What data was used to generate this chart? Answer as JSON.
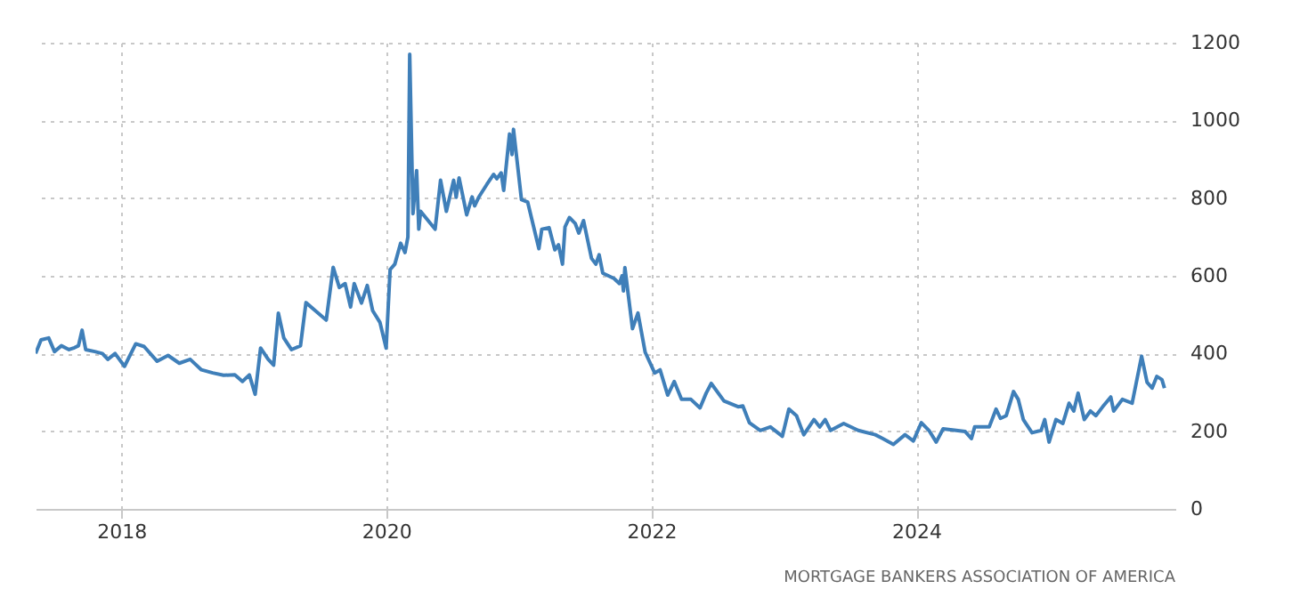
{
  "chart_data": {
    "type": "line",
    "annotations": [
      "MORTGAGE BANKERS ASSOCIATION OF AMERICA"
    ],
    "x": [
      "2017-05-10",
      "2017-05-25",
      "2017-06-15",
      "2017-07-01",
      "2017-07-20",
      "2017-08-10",
      "2017-08-25",
      "2017-09-05",
      "2017-09-15",
      "2017-09-25",
      "2017-10-20",
      "2017-11-10",
      "2017-11-25",
      "2017-12-15",
      "2018-01-10",
      "2018-02-10",
      "2018-03-05",
      "2018-04-10",
      "2018-05-10",
      "2018-06-10",
      "2018-07-10",
      "2018-08-10",
      "2018-09-10",
      "2018-10-10",
      "2018-11-10",
      "2018-12-01",
      "2018-12-20",
      "2019-01-05",
      "2019-01-20",
      "2019-02-10",
      "2019-02-25",
      "2019-03-10",
      "2019-03-25",
      "2019-04-15",
      "2019-05-10",
      "2019-05-25",
      "2019-06-20",
      "2019-07-20",
      "2019-08-08",
      "2019-08-25",
      "2019-09-10",
      "2019-09-25",
      "2019-10-05",
      "2019-10-25",
      "2019-11-10",
      "2019-11-25",
      "2019-12-15",
      "2020-01-01",
      "2020-01-12",
      "2020-01-25",
      "2020-02-10",
      "2020-02-22",
      "2020-03-01",
      "2020-03-06",
      "2020-03-15",
      "2020-03-25",
      "2020-03-31",
      "2020-04-05",
      "2020-05-15",
      "2020-05-30",
      "2020-06-15",
      "2020-07-05",
      "2020-07-12",
      "2020-07-20",
      "2020-08-10",
      "2020-08-25",
      "2020-09-01",
      "2020-09-12",
      "2020-10-05",
      "2020-10-23",
      "2020-11-01",
      "2020-11-13",
      "2020-11-20",
      "2020-12-06",
      "2020-12-13",
      "2020-12-17",
      "2021-01-08",
      "2021-01-25",
      "2021-02-25",
      "2021-03-05",
      "2021-03-25",
      "2021-04-10",
      "2021-04-20",
      "2021-05-01",
      "2021-05-08",
      "2021-05-20",
      "2021-06-05",
      "2021-06-15",
      "2021-06-28",
      "2021-07-20",
      "2021-08-01",
      "2021-08-10",
      "2021-08-20",
      "2021-09-20",
      "2021-10-05",
      "2021-10-12",
      "2021-10-16",
      "2021-10-20",
      "2021-11-10",
      "2021-11-25",
      "2021-12-15",
      "2022-01-10",
      "2022-01-25",
      "2022-02-15",
      "2022-03-05",
      "2022-03-25",
      "2022-04-20",
      "2022-05-15",
      "2022-06-01",
      "2022-06-15",
      "2022-07-20",
      "2022-08-28",
      "2022-09-10",
      "2022-09-28",
      "2022-10-28",
      "2022-11-25",
      "2022-12-28",
      "2023-01-15",
      "2023-02-05",
      "2023-02-25",
      "2023-03-25",
      "2023-04-10",
      "2023-04-25",
      "2023-05-10",
      "2023-06-15",
      "2023-07-25",
      "2023-09-10",
      "2023-10-01",
      "2023-10-30",
      "2023-12-01",
      "2023-12-24",
      "2024-01-15",
      "2024-02-05",
      "2024-02-25",
      "2024-03-15",
      "2024-04-20",
      "2024-05-15",
      "2024-06-01",
      "2024-06-10",
      "2024-07-20",
      "2024-08-08",
      "2024-08-20",
      "2024-09-05",
      "2024-09-25",
      "2024-10-08",
      "2024-10-22",
      "2024-11-15",
      "2024-12-10",
      "2024-12-20",
      "2025-01-01",
      "2025-01-20",
      "2025-02-08",
      "2025-02-25",
      "2025-03-10",
      "2025-03-22",
      "2025-04-08",
      "2025-04-25",
      "2025-05-10",
      "2025-05-28",
      "2025-06-20",
      "2025-06-28",
      "2025-07-22",
      "2025-08-18",
      "2025-09-13",
      "2025-09-28",
      "2025-10-12",
      "2025-10-25",
      "2025-11-08",
      "2025-11-15"
    ],
    "series": [
      {
        "color": "#3f7fb9",
        "values": [
          400,
          435,
          440,
          405,
          420,
          410,
          415,
          420,
          460,
          410,
          405,
          400,
          385,
          400,
          367,
          425,
          418,
          380,
          395,
          375,
          385,
          358,
          350,
          344,
          345,
          328,
          345,
          295,
          414,
          385,
          370,
          504,
          440,
          410,
          420,
          531,
          510,
          486,
          622,
          570,
          580,
          520,
          580,
          530,
          575,
          510,
          480,
          414,
          616,
          630,
          684,
          660,
          700,
          1170,
          760,
          871,
          720,
          766,
          720,
          846,
          766,
          846,
          802,
          852,
          757,
          803,
          780,
          802,
          836,
          861,
          850,
          865,
          820,
          965,
          912,
          977,
          796,
          790,
          670,
          720,
          724,
          667,
          680,
          630,
          726,
          750,
          735,
          710,
          742,
          645,
          630,
          654,
          607,
          593,
          580,
          600,
          561,
          621,
          464,
          504,
          403,
          350,
          358,
          293,
          328,
          282,
          282,
          260,
          298,
          323,
          278,
          263,
          265,
          222,
          202,
          211,
          187,
          257,
          240,
          191,
          230,
          211,
          230,
          202,
          220,
          202,
          191,
          181,
          166,
          191,
          175,
          222,
          202,
          172,
          206,
          202,
          199,
          181,
          211,
          211,
          257,
          233,
          240,
          302,
          282,
          230,
          196,
          202,
          230,
          172,
          230,
          220,
          272,
          252,
          298,
          230,
          252,
          240,
          262,
          288,
          252,
          282,
          272,
          393,
          326,
          311,
          341,
          333,
          311
        ]
      }
    ],
    "xlim": [
      "2017-05-10",
      "2025-12-15"
    ],
    "xticks": [
      {
        "value": "2018",
        "label": "2018"
      },
      {
        "value": "2020",
        "label": "2020"
      },
      {
        "value": "2022",
        "label": "2022"
      },
      {
        "value": "2024",
        "label": "2024"
      }
    ],
    "ylim": [
      0,
      1200
    ],
    "yticks": [
      0,
      200,
      400,
      600,
      800,
      1000,
      1200
    ],
    "grid": true,
    "marker": "none",
    "line_style": "solid"
  }
}
